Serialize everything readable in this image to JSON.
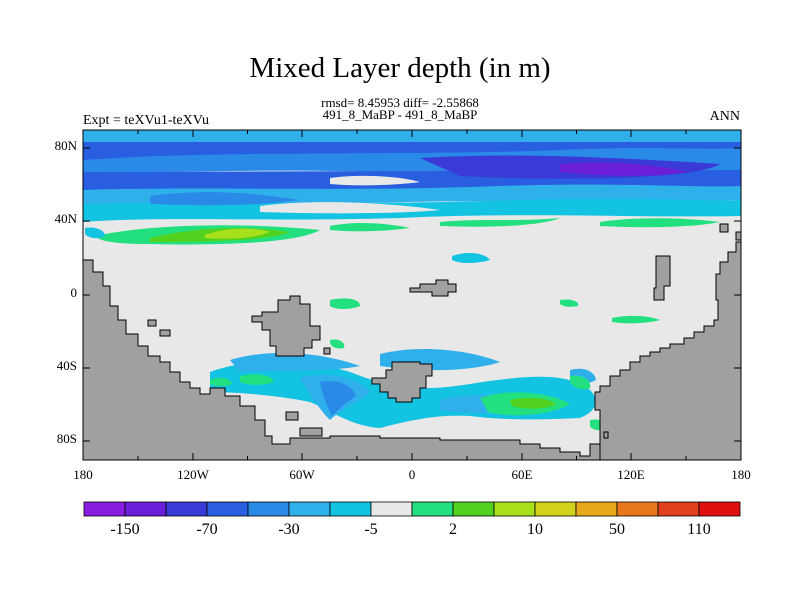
{
  "header": {
    "title": "Mixed Layer depth (in m)",
    "stats": "rmsd= 8.45953 diff= -2.55868",
    "case_pair": "491_8_MaBP - 491_8_MaBP",
    "experiment": "Expt = teXVu1-teXVu",
    "season": "ANN"
  },
  "map": {
    "lat_ticks": [
      "80N",
      "40N",
      "0",
      "40S",
      "80S"
    ],
    "lon_ticks": [
      "180",
      "120W",
      "60W",
      "0",
      "60E",
      "120E",
      "180"
    ],
    "land_color": "#a0a0a0",
    "background_color": "#e8e8e8"
  },
  "colorbar": {
    "labels": [
      "-150",
      "-70",
      "-30",
      "-5",
      "2",
      "10",
      "50",
      "110"
    ],
    "colors": [
      "#8a1ee0",
      "#6a1ed8",
      "#3a3ad6",
      "#2a5ee0",
      "#2a8ae8",
      "#30b0ea",
      "#12c3e2",
      "#e8e8e8",
      "#22e080",
      "#52d21e",
      "#a8e01c",
      "#d2d21c",
      "#e8a81c",
      "#e8781c",
      "#e0401c",
      "#e01010"
    ]
  }
}
